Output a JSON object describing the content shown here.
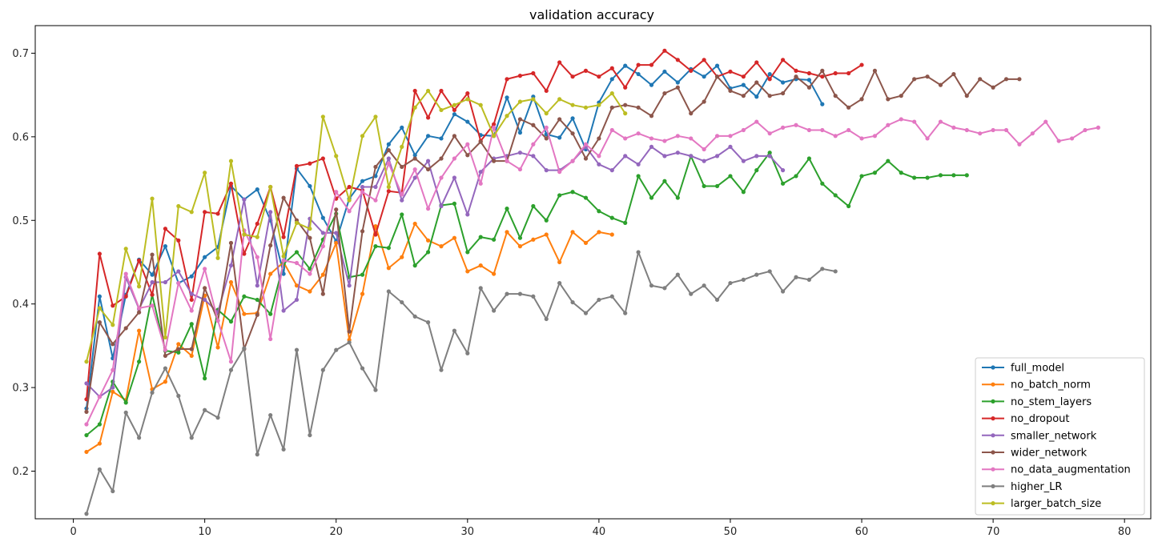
{
  "chart_data": {
    "type": "line",
    "title": "validation accuracy",
    "xlabel": "",
    "ylabel": "",
    "xlim": [
      -2.9,
      82.0
    ],
    "ylim": [
      0.143,
      0.733
    ],
    "xticks": [
      0,
      10,
      20,
      30,
      40,
      50,
      60,
      70,
      80
    ],
    "yticks": [
      0.2,
      0.3,
      0.4,
      0.5,
      0.6,
      0.7
    ],
    "grid": false,
    "legend": "lower-right",
    "series": [
      {
        "name": "full_model",
        "color": "#1f77b4",
        "values": [
          0.275,
          0.409,
          0.335,
          0.411,
          0.453,
          0.435,
          0.469,
          0.425,
          0.433,
          0.456,
          0.468,
          0.541,
          0.525,
          0.537,
          0.5,
          0.436,
          0.562,
          0.541,
          0.503,
          0.475,
          0.526,
          0.547,
          0.553,
          0.591,
          0.611,
          0.578,
          0.601,
          0.598,
          0.627,
          0.618,
          0.602,
          0.601,
          0.647,
          0.605,
          0.648,
          0.603,
          0.599,
          0.622,
          0.585,
          0.641,
          0.669,
          0.685,
          0.675,
          0.662,
          0.678,
          0.665,
          0.681,
          0.672,
          0.685,
          0.658,
          0.662,
          0.648,
          0.675,
          0.665,
          0.669,
          0.668,
          0.639
        ]
      },
      {
        "name": "no_batch_norm",
        "color": "#ff7f0e",
        "values": [
          0.223,
          0.233,
          0.295,
          0.285,
          0.368,
          0.298,
          0.307,
          0.352,
          0.338,
          0.41,
          0.348,
          0.426,
          0.388,
          0.389,
          0.436,
          0.45,
          0.422,
          0.415,
          0.435,
          0.473,
          0.357,
          0.412,
          0.493,
          0.443,
          0.456,
          0.496,
          0.476,
          0.469,
          0.479,
          0.439,
          0.446,
          0.436,
          0.486,
          0.469,
          0.477,
          0.483,
          0.45,
          0.486,
          0.473,
          0.486,
          0.483
        ]
      },
      {
        "name": "no_stem_layers",
        "color": "#2ca02c",
        "values": [
          0.243,
          0.256,
          0.307,
          0.282,
          0.331,
          0.411,
          0.344,
          0.342,
          0.376,
          0.311,
          0.393,
          0.379,
          0.409,
          0.405,
          0.388,
          0.448,
          0.462,
          0.442,
          0.477,
          0.508,
          0.432,
          0.435,
          0.469,
          0.467,
          0.507,
          0.446,
          0.462,
          0.518,
          0.52,
          0.462,
          0.48,
          0.477,
          0.514,
          0.479,
          0.517,
          0.5,
          0.53,
          0.534,
          0.527,
          0.511,
          0.503,
          0.497,
          0.553,
          0.527,
          0.547,
          0.527,
          0.577,
          0.541,
          0.541,
          0.553,
          0.534,
          0.56,
          0.581,
          0.544,
          0.553,
          0.574,
          0.544,
          0.53,
          0.517,
          0.553,
          0.557,
          0.571,
          0.557,
          0.551,
          0.551,
          0.554,
          0.554,
          0.554
        ]
      },
      {
        "name": "no_dropout",
        "color": "#d62728",
        "values": [
          0.286,
          0.46,
          0.398,
          0.409,
          0.452,
          0.411,
          0.49,
          0.476,
          0.405,
          0.51,
          0.508,
          0.544,
          0.46,
          0.496,
          0.54,
          0.48,
          0.565,
          0.568,
          0.574,
          0.526,
          0.54,
          0.536,
          0.483,
          0.535,
          0.533,
          0.655,
          0.623,
          0.655,
          0.632,
          0.652,
          0.595,
          0.615,
          0.669,
          0.673,
          0.676,
          0.655,
          0.689,
          0.672,
          0.679,
          0.672,
          0.682,
          0.659,
          0.686,
          0.686,
          0.703,
          0.692,
          0.679,
          0.692,
          0.672,
          0.678,
          0.672,
          0.689,
          0.669,
          0.692,
          0.679,
          0.676,
          0.672,
          0.676,
          0.676,
          0.686
        ]
      },
      {
        "name": "smaller_network",
        "color": "#9467bd",
        "values": [
          0.305,
          0.289,
          0.3,
          0.432,
          0.394,
          0.426,
          0.426,
          0.439,
          0.412,
          0.405,
          0.39,
          0.446,
          0.525,
          0.422,
          0.51,
          0.392,
          0.405,
          0.502,
          0.485,
          0.485,
          0.422,
          0.54,
          0.54,
          0.574,
          0.524,
          0.551,
          0.571,
          0.517,
          0.551,
          0.507,
          0.558,
          0.574,
          0.577,
          0.581,
          0.577,
          0.56,
          0.56,
          0.571,
          0.588,
          0.567,
          0.56,
          0.577,
          0.567,
          0.588,
          0.577,
          0.581,
          0.577,
          0.571,
          0.577,
          0.588,
          0.571,
          0.577,
          0.577,
          0.56
        ]
      },
      {
        "name": "wider_network",
        "color": "#8c564b",
        "values": [
          0.271,
          0.378,
          0.352,
          0.371,
          0.39,
          0.459,
          0.338,
          0.346,
          0.346,
          0.419,
          0.38,
          0.473,
          0.346,
          0.387,
          0.47,
          0.527,
          0.5,
          0.479,
          0.412,
          0.513,
          0.367,
          0.487,
          0.564,
          0.584,
          0.564,
          0.574,
          0.561,
          0.574,
          0.601,
          0.578,
          0.594,
          0.571,
          0.571,
          0.621,
          0.614,
          0.598,
          0.621,
          0.604,
          0.574,
          0.598,
          0.635,
          0.638,
          0.635,
          0.625,
          0.652,
          0.659,
          0.628,
          0.642,
          0.672,
          0.655,
          0.649,
          0.665,
          0.649,
          0.652,
          0.672,
          0.659,
          0.679,
          0.649,
          0.635,
          0.645,
          0.679,
          0.645,
          0.649,
          0.669,
          0.672,
          0.662,
          0.675,
          0.649,
          0.669,
          0.659,
          0.669,
          0.669
        ]
      },
      {
        "name": "no_data_augmentation",
        "color": "#e377c2",
        "values": [
          0.256,
          0.289,
          0.321,
          0.436,
          0.395,
          0.398,
          0.345,
          0.425,
          0.392,
          0.442,
          0.38,
          0.331,
          0.488,
          0.456,
          0.358,
          0.452,
          0.449,
          0.436,
          0.469,
          0.534,
          0.511,
          0.534,
          0.524,
          0.568,
          0.531,
          0.561,
          0.514,
          0.551,
          0.574,
          0.591,
          0.544,
          0.611,
          0.571,
          0.561,
          0.591,
          0.611,
          0.558,
          0.571,
          0.591,
          0.577,
          0.608,
          0.598,
          0.604,
          0.598,
          0.595,
          0.601,
          0.598,
          0.585,
          0.601,
          0.601,
          0.608,
          0.618,
          0.604,
          0.611,
          0.614,
          0.608,
          0.608,
          0.601,
          0.608,
          0.598,
          0.601,
          0.614,
          0.621,
          0.618,
          0.598,
          0.618,
          0.611,
          0.608,
          0.604,
          0.608,
          0.608,
          0.591,
          0.604,
          0.618,
          0.595,
          0.598,
          0.608,
          0.611
        ]
      },
      {
        "name": "higher_LR",
        "color": "#7f7f7f",
        "values": [
          0.149,
          0.202,
          0.176,
          0.27,
          0.24,
          0.294,
          0.323,
          0.29,
          0.24,
          0.273,
          0.264,
          0.321,
          0.347,
          0.22,
          0.267,
          0.226,
          0.345,
          0.243,
          0.321,
          0.345,
          0.354,
          0.323,
          0.297,
          0.415,
          0.402,
          0.385,
          0.378,
          0.321,
          0.368,
          0.341,
          0.419,
          0.392,
          0.412,
          0.412,
          0.409,
          0.382,
          0.425,
          0.402,
          0.389,
          0.405,
          0.409,
          0.389,
          0.462,
          0.422,
          0.419,
          0.435,
          0.412,
          0.422,
          0.405,
          0.425,
          0.429,
          0.435,
          0.439,
          0.415,
          0.432,
          0.429,
          0.442,
          0.439
        ]
      },
      {
        "name": "larger_batch_size",
        "color": "#bcbd22",
        "values": [
          0.331,
          0.395,
          0.375,
          0.466,
          0.421,
          0.526,
          0.36,
          0.517,
          0.51,
          0.557,
          0.455,
          0.571,
          0.483,
          0.48,
          0.54,
          0.457,
          0.497,
          0.49,
          0.624,
          0.577,
          0.524,
          0.601,
          0.624,
          0.54,
          0.588,
          0.635,
          0.655,
          0.632,
          0.638,
          0.645,
          0.638,
          0.601,
          0.625,
          0.642,
          0.645,
          0.628,
          0.645,
          0.638,
          0.635,
          0.638,
          0.652,
          0.628
        ]
      }
    ]
  }
}
